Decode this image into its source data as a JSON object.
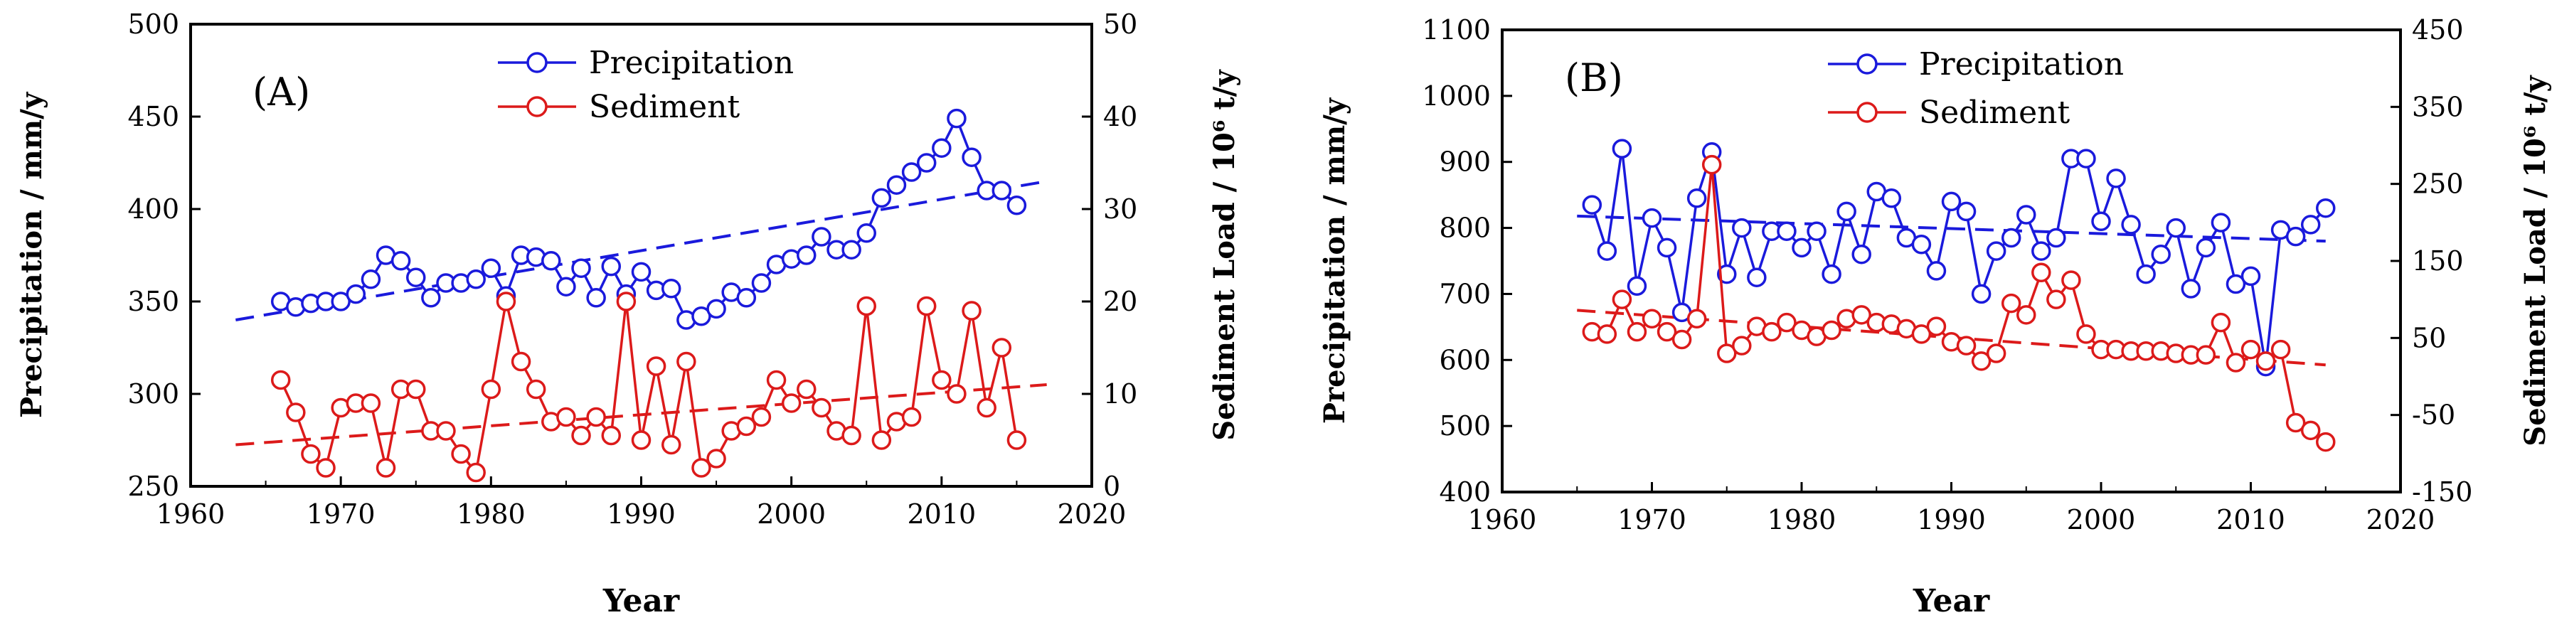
{
  "colors": {
    "precip": "#1a1adc",
    "sed": "#dc1a1a",
    "axis": "#000000"
  },
  "chart_data": [
    {
      "type": "line",
      "panel_label": "(A)",
      "xlabel": "Year",
      "ylabel_left": "Precipitation / mm/y",
      "ylabel_right": "Sediment Load / 10⁶ t/y",
      "xlim": [
        1960,
        2020
      ],
      "xticks": [
        1960,
        1970,
        1980,
        1990,
        2000,
        2010,
        2020
      ],
      "ylim_left": [
        250,
        500
      ],
      "yticks_left": [
        250,
        300,
        350,
        400,
        450,
        500
      ],
      "ylim_right": [
        0,
        50
      ],
      "yticks_right": [
        0,
        10,
        20,
        30,
        40,
        50
      ],
      "legend": [
        "Precipitation",
        "Sediment"
      ],
      "years": [
        1966,
        1967,
        1968,
        1969,
        1970,
        1971,
        1972,
        1973,
        1974,
        1975,
        1976,
        1977,
        1978,
        1979,
        1980,
        1981,
        1982,
        1983,
        1984,
        1985,
        1986,
        1987,
        1988,
        1989,
        1990,
        1991,
        1992,
        1993,
        1994,
        1995,
        1996,
        1997,
        1998,
        1999,
        2000,
        2001,
        2002,
        2003,
        2004,
        2005,
        2006,
        2007,
        2008,
        2009,
        2010,
        2011,
        2012,
        2013,
        2014,
        2015
      ],
      "series": [
        {
          "name": "Precipitation",
          "axis": "left",
          "values": [
            350,
            347,
            349,
            350,
            350,
            354,
            362,
            375,
            372,
            363,
            352,
            360,
            360,
            362,
            368,
            353,
            375,
            374,
            372,
            358,
            368,
            352,
            369,
            354,
            366,
            356,
            357,
            340,
            342,
            346,
            355,
            352,
            360,
            370,
            373,
            375,
            385,
            378,
            378,
            387,
            406,
            413,
            420,
            425,
            433,
            449,
            428,
            410,
            410,
            402
          ]
        },
        {
          "name": "Sediment",
          "axis": "right",
          "values": [
            11.5,
            8,
            3.5,
            2,
            8.5,
            9,
            9,
            2,
            10.5,
            10.5,
            6,
            6,
            3.5,
            1.5,
            10.5,
            20,
            13.5,
            10.5,
            7,
            7.5,
            5.5,
            7.5,
            5.5,
            20,
            5,
            13,
            4.5,
            13.5,
            2,
            3,
            6,
            6.5,
            7.5,
            11.5,
            9,
            10.5,
            8.5,
            6,
            5.5,
            19.5,
            5,
            7,
            7.5,
            19.5,
            11.5,
            10,
            19,
            8.5,
            15,
            5
          ]
        }
      ],
      "trend_left": {
        "x": [
          1963,
          2017
        ],
        "y": [
          340,
          415
        ]
      },
      "trend_right": {
        "x": [
          1963,
          2017
        ],
        "y": [
          4.5,
          11
        ]
      }
    },
    {
      "type": "line",
      "panel_label": "(B)",
      "xlabel": "Year",
      "ylabel_left": "Precipitation / mm/y",
      "ylabel_right": "Sediment Load / 10⁶ t/y",
      "xlim": [
        1960,
        2020
      ],
      "xticks": [
        1960,
        1970,
        1980,
        1990,
        2000,
        2010,
        2020
      ],
      "ylim_left": [
        400,
        1100
      ],
      "yticks_left": [
        400,
        500,
        600,
        700,
        800,
        900,
        1000,
        1100
      ],
      "ylim_right": [
        -150,
        450
      ],
      "yticks_right": [
        -150,
        -50,
        50,
        150,
        250,
        350,
        450
      ],
      "legend": [
        "Precipitation",
        "Sediment"
      ],
      "years": [
        1966,
        1967,
        1968,
        1969,
        1970,
        1971,
        1972,
        1973,
        1974,
        1975,
        1976,
        1977,
        1978,
        1979,
        1980,
        1981,
        1982,
        1983,
        1984,
        1985,
        1986,
        1987,
        1988,
        1989,
        1990,
        1991,
        1992,
        1993,
        1994,
        1995,
        1996,
        1997,
        1998,
        1999,
        2000,
        2001,
        2002,
        2003,
        2004,
        2005,
        2006,
        2007,
        2008,
        2009,
        2010,
        2011,
        2012,
        2013,
        2014,
        2015
      ],
      "series": [
        {
          "name": "Precipitation",
          "axis": "left",
          "values": [
            835,
            765,
            920,
            712,
            815,
            770,
            672,
            845,
            915,
            730,
            800,
            725,
            795,
            795,
            770,
            795,
            730,
            825,
            760,
            855,
            845,
            785,
            775,
            735,
            840,
            825,
            700,
            765,
            785,
            820,
            765,
            785,
            905,
            905,
            810,
            875,
            805,
            730,
            760,
            800,
            708,
            770,
            808,
            715,
            727,
            590,
            797,
            787,
            805,
            830
          ]
        },
        {
          "name": "Sediment",
          "axis": "right",
          "values": [
            58,
            55,
            100,
            58,
            75,
            58,
            48,
            75,
            275,
            30,
            40,
            65,
            58,
            70,
            60,
            52,
            60,
            75,
            80,
            70,
            68,
            62,
            55,
            65,
            45,
            40,
            20,
            30,
            95,
            80,
            135,
            100,
            125,
            55,
            35,
            35,
            33,
            33,
            33,
            30,
            28,
            28,
            70,
            18,
            35,
            20,
            35,
            -60,
            -70,
            -85
          ]
        }
      ],
      "trend_left": {
        "x": [
          1965,
          2015
        ],
        "y": [
          818,
          780
        ]
      },
      "trend_right": {
        "x": [
          1965,
          2015
        ],
        "y": [
          86,
          15
        ]
      }
    }
  ]
}
